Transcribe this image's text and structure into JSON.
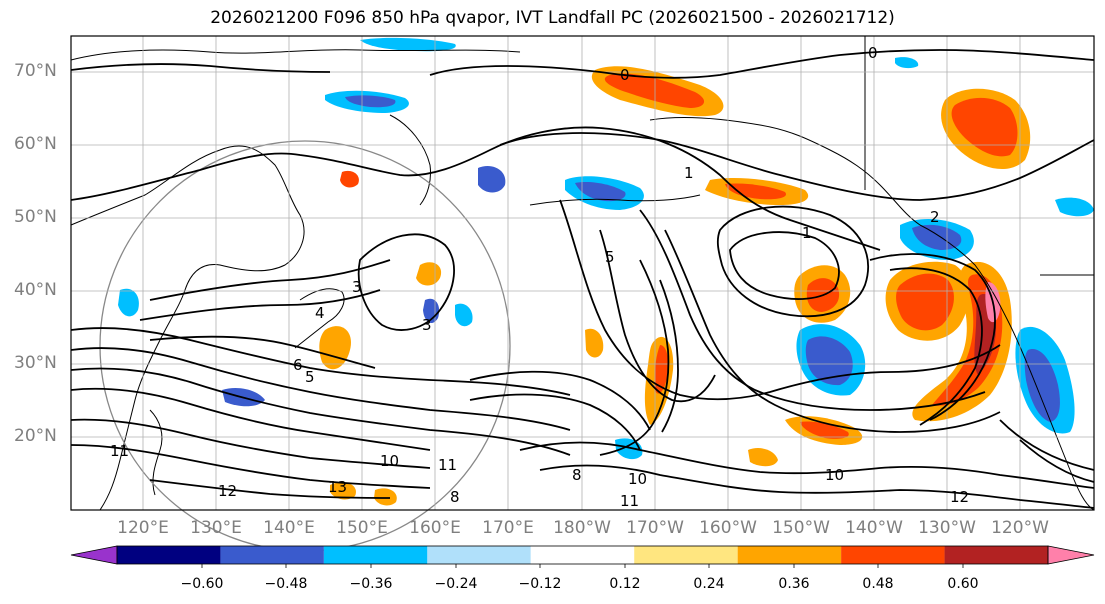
{
  "title": "2026021200 F096 850 hPa qvapor, IVT Landfall PC (2026021500 - 2026021712)",
  "map": {
    "lat_labels": [
      "70°N",
      "60°N",
      "50°N",
      "40°N",
      "30°N",
      "20°N"
    ],
    "lon_labels": [
      "120°E",
      "130°E",
      "140°E",
      "150°E",
      "160°E",
      "170°E",
      "180°W",
      "170°W",
      "160°W",
      "150°W",
      "140°W",
      "130°W",
      "120°W"
    ],
    "contour_labels": [
      "0",
      "0",
      "1",
      "1",
      "2",
      "3",
      "3",
      "4",
      "5",
      "5",
      "6",
      "8",
      "8",
      "10",
      "10",
      "10",
      "11",
      "11",
      "11",
      "12",
      "12",
      "13"
    ]
  },
  "colorbar": {
    "tick_labels": [
      "−0.60",
      "−0.48",
      "−0.36",
      "−0.24",
      "−0.12",
      "0.12",
      "0.24",
      "0.36",
      "0.48",
      "0.60"
    ],
    "bin_colors": [
      "#9933cc",
      "#000080",
      "#3a5bcd",
      "#00bfff",
      "#b0e0fa",
      "#ffffff",
      "#ffe680",
      "#ffa500",
      "#ff4500",
      "#b22222",
      "#ff80aa"
    ]
  },
  "colors": {
    "land_outline": "#000000",
    "contour": "#000000",
    "grid": "#b0b0b0",
    "circle": "#888888"
  }
}
